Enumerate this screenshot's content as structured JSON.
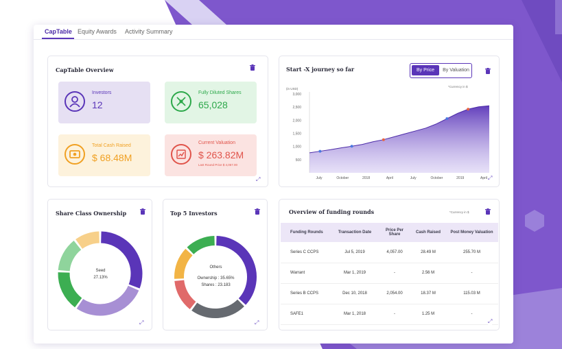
{
  "tabs": [
    "CapTable",
    "Equity Awards",
    "Activity Summary"
  ],
  "overview": {
    "title": "CapTable Overview",
    "tiles": [
      {
        "label": "Investors",
        "value": "12",
        "sub": "",
        "color": "#5a35b8",
        "bg": "#e6e0f3",
        "icon": "user-icon"
      },
      {
        "label": "Fully Diluted Shares",
        "value": "65,028",
        "sub": "",
        "color": "#2ca84a",
        "bg": "#e2f5e5",
        "icon": "network-icon"
      },
      {
        "label": "Total Cash Raised",
        "value": "$ 68.48M",
        "sub": "",
        "color": "#f0a022",
        "bg": "#fdf2dc",
        "icon": "cash-icon"
      },
      {
        "label": "Current Valuation",
        "value": "$ 263.82M",
        "sub": "Last Round Price $ 4,057.00",
        "color": "#e0534a",
        "bg": "#fbe3e1",
        "icon": "chart-up-icon"
      }
    ]
  },
  "journey": {
    "title": "Start -X  journey so far",
    "toggle_on": "By Price",
    "toggle_off": "By Valuation",
    "currency_note": "*Currency in $"
  },
  "chart_data": {
    "type": "area",
    "ylabel": "(in USD)",
    "y_ticks": [
      "3,000",
      "2,500",
      "2,000",
      "1,500",
      "1,000",
      "500"
    ],
    "x_ticks": [
      "July",
      "October",
      "2018",
      "April",
      "July",
      "October",
      "2019",
      "April"
    ],
    "ylim": [
      0,
      3000
    ],
    "values": [
      760,
      820,
      880,
      950,
      1010,
      1080,
      1180,
      1260,
      1370,
      1480,
      1590,
      1700,
      1860,
      2060,
      2260,
      2420,
      2510,
      2550
    ],
    "markers": [
      {
        "i": 1,
        "color": "#4a78e0"
      },
      {
        "i": 4,
        "color": "#4a78e0"
      },
      {
        "i": 7,
        "color": "#e8633f"
      },
      {
        "i": 13,
        "color": "#4a78e0"
      },
      {
        "i": 15,
        "color": "#e8633f"
      }
    ]
  },
  "share_class": {
    "title": "Share Class Ownership",
    "center_label": "Seed",
    "center_value": "27.13%",
    "segments": [
      {
        "value": 27.13,
        "color": "#5a35b8"
      },
      {
        "value": 25,
        "color": "#a78fd4"
      },
      {
        "value": 14,
        "color": "#3cae52"
      },
      {
        "value": 12,
        "color": "#8fd49c"
      },
      {
        "value": 9,
        "color": "#f7d08a"
      }
    ]
  },
  "top5": {
    "title": "Top 5 Investors",
    "center_label": "Others",
    "center_line1": "Ownership : 35.65%",
    "center_line2": "Shares : 23.183",
    "segments": [
      {
        "value": 35.65,
        "color": "#5a35b8"
      },
      {
        "value": 22,
        "color": "#666a70"
      },
      {
        "value": 13,
        "color": "#e06a6a"
      },
      {
        "value": 13,
        "color": "#f2b445"
      },
      {
        "value": 12,
        "color": "#3cae52"
      }
    ]
  },
  "funding": {
    "title": "Overview of funding rounds",
    "currency_note": "*Currency in $",
    "headers": [
      "Funding Rounds",
      "Transaction Date",
      "Price Per Share",
      "Cash Raised",
      "Post Money Valuation"
    ],
    "rows": [
      [
        "Series C CCPS",
        "Jul 5, 2019",
        "4,057.00",
        "28.49 M",
        "255.70 M"
      ],
      [
        "Warrant",
        "Mar 1, 2019",
        "-",
        "2.56 M",
        "-"
      ],
      [
        "Series B CCPS",
        "Dec 10, 2018",
        "2,054.00",
        "18.37 M",
        "115.03 M"
      ],
      [
        "SAFE1",
        "Mar 1, 2018",
        "-",
        "1.25 M",
        "-"
      ]
    ]
  }
}
